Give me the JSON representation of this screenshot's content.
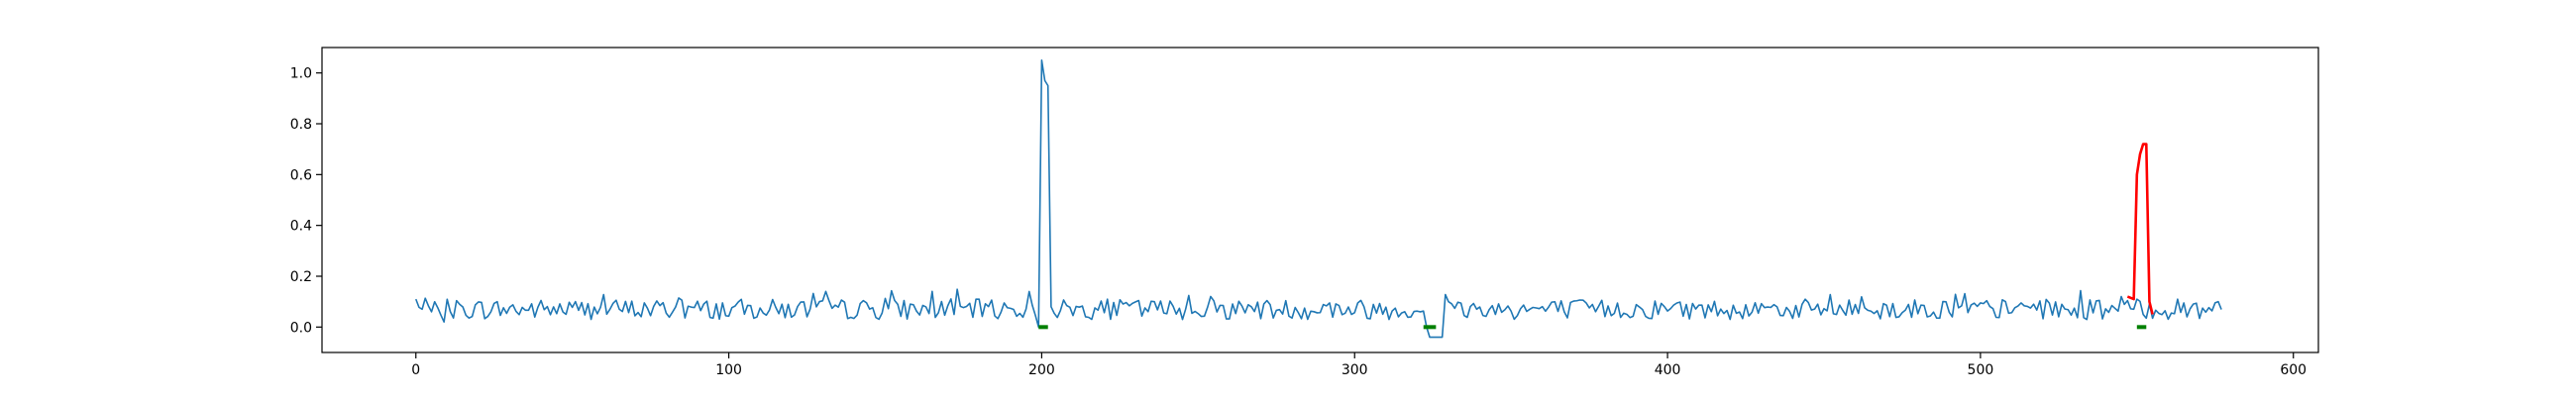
{
  "chart_data": {
    "type": "line",
    "title": "",
    "xlabel": "",
    "ylabel": "",
    "xlim": [
      -30,
      608
    ],
    "ylim": [
      -0.1,
      1.1
    ],
    "grid": false,
    "legend": "none",
    "x_ticks": [
      0,
      100,
      200,
      300,
      400,
      500,
      600
    ],
    "y_ticks": [
      0.0,
      0.2,
      0.4,
      0.6,
      0.8,
      1.0
    ],
    "x_tick_labels": [
      "0",
      "100",
      "200",
      "300",
      "400",
      "500",
      "600"
    ],
    "y_tick_labels": [
      "0.0",
      "0.2",
      "0.4",
      "0.6",
      "0.8",
      "1.0"
    ],
    "series": [
      {
        "role": "signal",
        "color": "#1f77b4",
        "x_start": 0,
        "points": 578,
        "baseline_mean": 0.07,
        "baseline_noise": 0.04,
        "key_points": [
          {
            "x": 0,
            "y": 0.11
          },
          {
            "x": 2,
            "y": 0.07
          },
          {
            "x": 5,
            "y": 0.06
          },
          {
            "x": 9,
            "y": 0.02
          },
          {
            "x": 199,
            "y": 0.0
          },
          {
            "x": 200,
            "y": 1.05
          },
          {
            "x": 201,
            "y": 0.97
          },
          {
            "x": 202,
            "y": 0.95
          },
          {
            "x": 203,
            "y": 0.08
          },
          {
            "x": 321,
            "y": 0.06
          },
          {
            "x": 323,
            "y": 0.0
          },
          {
            "x": 324,
            "y": -0.04
          },
          {
            "x": 328,
            "y": -0.04
          },
          {
            "x": 330,
            "y": 0.1
          },
          {
            "x": 545,
            "y": 0.12
          },
          {
            "x": 576,
            "y": 0.1
          }
        ]
      },
      {
        "role": "anomaly",
        "color": "#ff0000",
        "points": [
          {
            "x": 547,
            "y": 0.12
          },
          {
            "x": 549,
            "y": 0.11
          },
          {
            "x": 550,
            "y": 0.6
          },
          {
            "x": 551,
            "y": 0.68
          },
          {
            "x": 552,
            "y": 0.72
          },
          {
            "x": 553,
            "y": 0.72
          },
          {
            "x": 554,
            "y": 0.1
          },
          {
            "x": 555,
            "y": 0.05
          }
        ]
      }
    ],
    "markers": [
      {
        "x_start": 199,
        "x_end": 202,
        "y": 0.0,
        "color": "#008000"
      },
      {
        "x_start": 322,
        "x_end": 326,
        "y": 0.0,
        "color": "#008000"
      },
      {
        "x_start": 550,
        "x_end": 553,
        "y": 0.0,
        "color": "#008000"
      }
    ]
  }
}
